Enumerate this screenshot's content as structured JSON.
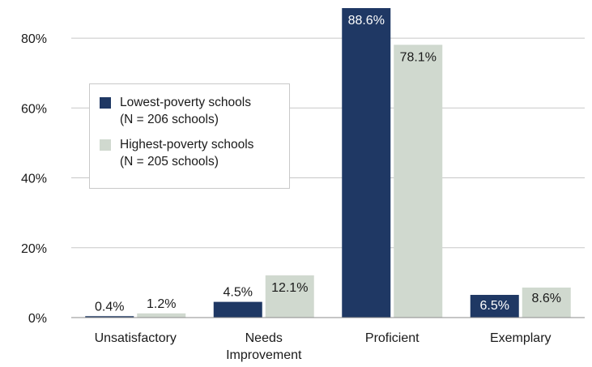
{
  "chart_data": {
    "type": "bar",
    "title": "",
    "xlabel": "",
    "ylabel": "",
    "ylim": [
      0,
      88.6
    ],
    "y_ticks": [
      0,
      20,
      40,
      60,
      80
    ],
    "y_tick_labels": [
      "0%",
      "20%",
      "40%",
      "60%",
      "80%"
    ],
    "grid": true,
    "legend_position": "upper-left",
    "categories": [
      [
        "Unsatisfactory"
      ],
      [
        "Needs",
        "Improvement"
      ],
      [
        "Proficient"
      ],
      [
        "Exemplary"
      ]
    ],
    "series": [
      {
        "name": "Lowest-poverty schools",
        "name_detail": "(N = 206 schools)",
        "color": "#1f3864",
        "label_color": "#ffffff",
        "values": [
          0.4,
          4.5,
          88.6,
          6.5
        ],
        "labels": [
          "0.4%",
          "4.5%",
          "88.6%",
          "6.5%"
        ]
      },
      {
        "name": "Highest-poverty schools",
        "name_detail": "(N = 205 schools)",
        "color": "#d0d9cf",
        "label_color": "#1a1a1a",
        "values": [
          1.2,
          12.1,
          78.1,
          8.6
        ],
        "labels": [
          "1.2%",
          "12.1%",
          "78.1%",
          "8.6%"
        ]
      }
    ]
  }
}
